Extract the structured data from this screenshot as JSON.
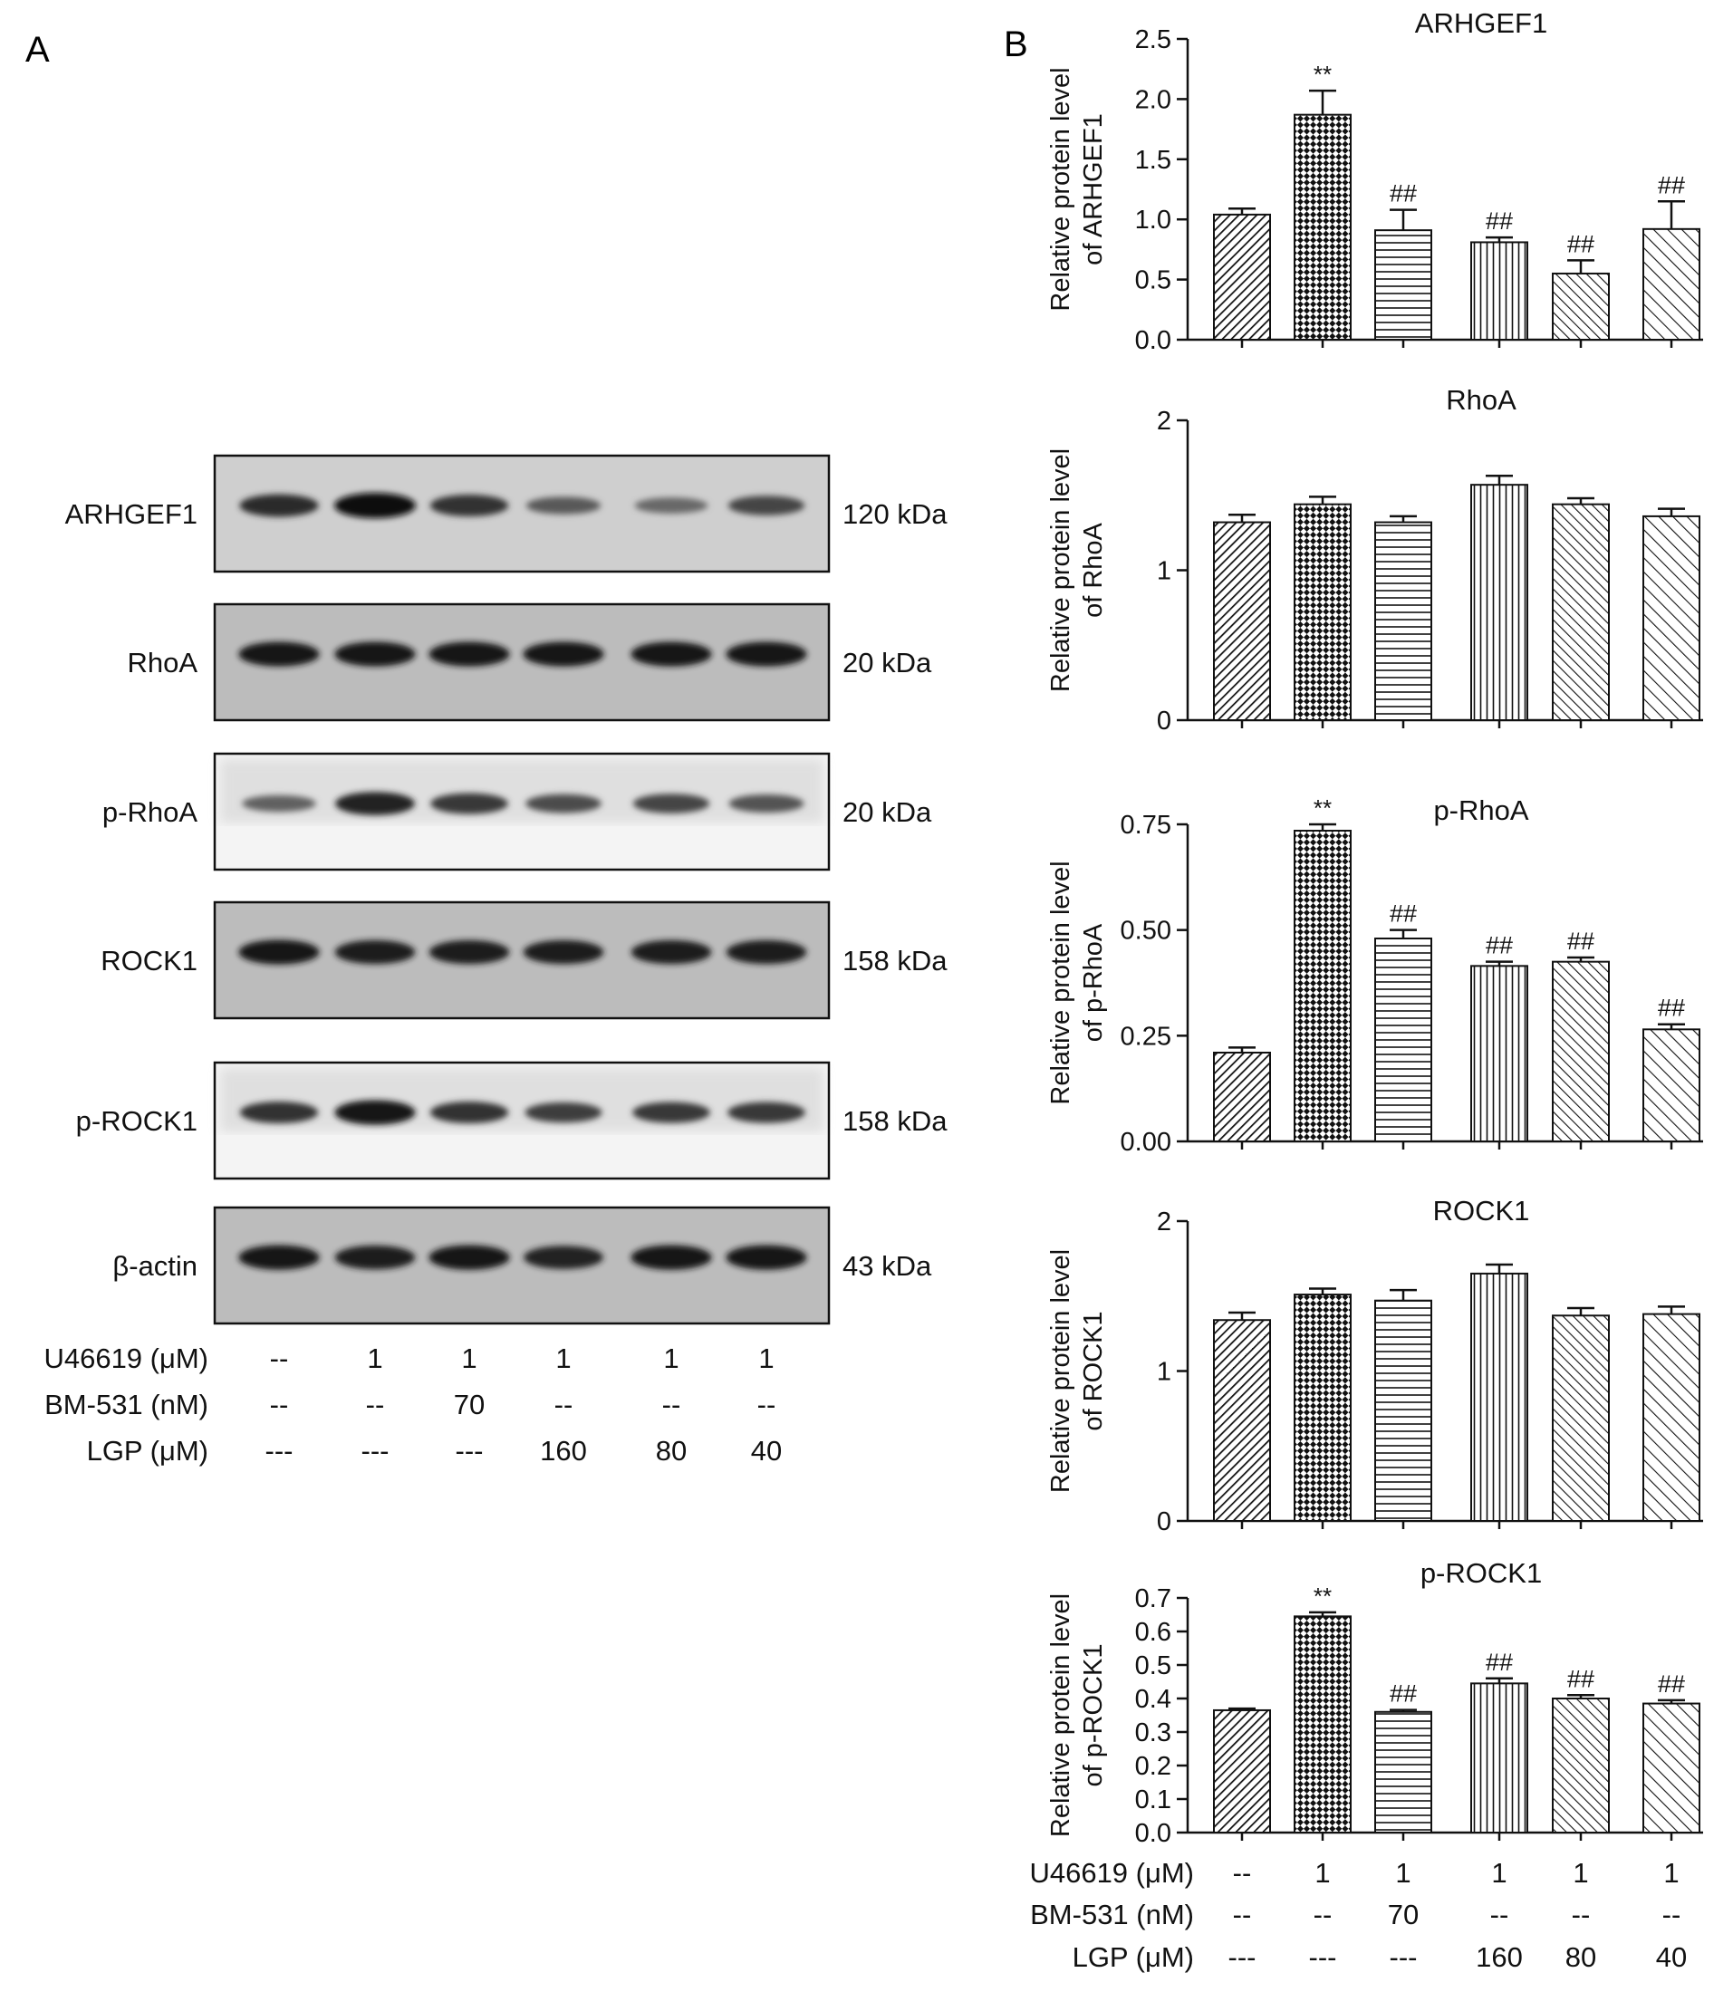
{
  "panels": {
    "A": "A",
    "B": "B"
  },
  "western_blot": {
    "blots": [
      {
        "label": "ARHGEF1",
        "kda": "120 kDa",
        "style": "light",
        "bands": [
          0.8,
          1.0,
          0.75,
          0.45,
          0.35,
          0.6
        ]
      },
      {
        "label": "RhoA",
        "kda": "20 kDa",
        "style": "mid",
        "bands": [
          0.95,
          0.95,
          0.95,
          0.95,
          0.95,
          0.95
        ]
      },
      {
        "label": "p-RhoA",
        "kda": "20 kDa",
        "style": "white",
        "bands": [
          0.4,
          0.85,
          0.7,
          0.55,
          0.6,
          0.5
        ]
      },
      {
        "label": "ROCK1",
        "kda": "158 kDa",
        "style": "mid",
        "bands": [
          0.95,
          0.9,
          0.9,
          0.9,
          0.9,
          0.9
        ]
      },
      {
        "label": "p-ROCK1",
        "kda": "158 kDa",
        "style": "white",
        "bands": [
          0.75,
          0.95,
          0.75,
          0.65,
          0.7,
          0.7
        ]
      },
      {
        "label": "β-actin",
        "kda": "43 kDa",
        "style": "mid",
        "bands": [
          0.95,
          0.9,
          0.95,
          0.85,
          0.95,
          0.95
        ]
      }
    ]
  },
  "treatment_rows": [
    {
      "label": "U46619 (μM)",
      "values": [
        "--",
        "1",
        "1",
        "1",
        "1",
        "1"
      ]
    },
    {
      "label": "BM-531 (nM)",
      "values": [
        "--",
        "--",
        "70",
        "--",
        "--",
        "--"
      ]
    },
    {
      "label": "LGP (μM)",
      "values": [
        "---",
        "---",
        "---",
        "160",
        "80",
        "40"
      ]
    }
  ],
  "chart_data": [
    {
      "type": "bar",
      "title": "ARHGEF1",
      "ylabel": [
        "Relative protein level",
        "of ARHGEF1"
      ],
      "ylim": [
        0,
        2.5
      ],
      "yticks": [
        "0.0",
        "0.5",
        "1.0",
        "1.5",
        "2.0",
        "2.5"
      ],
      "values": [
        1.04,
        1.87,
        0.91,
        0.81,
        0.55,
        0.92
      ],
      "errors": [
        0.05,
        0.2,
        0.17,
        0.04,
        0.11,
        0.23
      ],
      "annotations": [
        "",
        "**",
        "##",
        "##",
        "##",
        "##"
      ]
    },
    {
      "type": "bar",
      "title": "RhoA",
      "ylabel": [
        "Relative protein level",
        "of RhoA"
      ],
      "ylim": [
        0,
        2
      ],
      "yticks": [
        "0",
        "1",
        "2"
      ],
      "values": [
        1.32,
        1.44,
        1.32,
        1.57,
        1.44,
        1.36
      ],
      "errors": [
        0.05,
        0.05,
        0.04,
        0.06,
        0.04,
        0.05
      ],
      "annotations": [
        "",
        "",
        "",
        "",
        "",
        ""
      ]
    },
    {
      "type": "bar",
      "title": "p-RhoA",
      "ylabel": [
        "Relative protein level",
        "of p-RhoA"
      ],
      "ylim": [
        0,
        0.75
      ],
      "yticks": [
        "0.00",
        "0.25",
        "0.50",
        "0.75"
      ],
      "values": [
        0.21,
        0.735,
        0.48,
        0.415,
        0.425,
        0.265
      ],
      "errors": [
        0.012,
        0.015,
        0.02,
        0.01,
        0.01,
        0.012
      ],
      "annotations": [
        "",
        "**",
        "##",
        "##",
        "##",
        "##"
      ]
    },
    {
      "type": "bar",
      "title": "ROCK1",
      "ylabel": [
        "Relative protein level",
        "of ROCK1"
      ],
      "ylim": [
        0,
        2
      ],
      "yticks": [
        "0",
        "1",
        "2"
      ],
      "values": [
        1.34,
        1.51,
        1.47,
        1.65,
        1.37,
        1.38
      ],
      "errors": [
        0.05,
        0.04,
        0.07,
        0.06,
        0.05,
        0.05
      ],
      "annotations": [
        "",
        "",
        "",
        "",
        "",
        ""
      ]
    },
    {
      "type": "bar",
      "title": "p-ROCK1",
      "ylabel": [
        "Relative protein level",
        "of p-ROCK1"
      ],
      "ylim": [
        0,
        0.7
      ],
      "yticks": [
        "0.0",
        "0.1",
        "0.2",
        "0.3",
        "0.4",
        "0.5",
        "0.6",
        "0.7"
      ],
      "values": [
        0.365,
        0.645,
        0.36,
        0.445,
        0.4,
        0.385
      ],
      "errors": [
        0.005,
        0.012,
        0.006,
        0.015,
        0.01,
        0.01
      ],
      "annotations": [
        "",
        "**",
        "##",
        "##",
        "##",
        "##"
      ]
    }
  ],
  "colors": {
    "ink": "#111111",
    "bar_fill": "#ffffff"
  }
}
